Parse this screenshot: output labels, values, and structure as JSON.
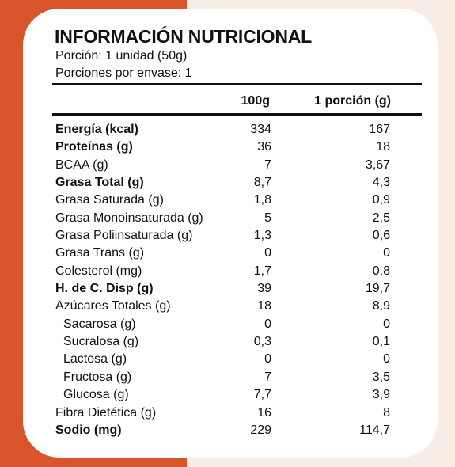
{
  "title": "INFORMACIÓN NUTRICIONAL",
  "serving_size": "Porción: 1 unidad (50g)",
  "servings_per_container": "Porciones por envase: 1",
  "columns": {
    "per_100": "100g",
    "per_serving": "1 porción (g)"
  },
  "colors": {
    "left_background": "#d8552c",
    "right_background": "#f8ede4",
    "card": "#ffffff",
    "text": "#111111"
  },
  "rows": [
    {
      "label": "Energía (kcal)",
      "per_100": "334",
      "per_serving": "167",
      "bold": true
    },
    {
      "label": "Proteínas (g)",
      "per_100": "36",
      "per_serving": "18",
      "bold": true
    },
    {
      "label": "BCAA (g)",
      "per_100": "7",
      "per_serving": "3,67"
    },
    {
      "label": "Grasa Total (g)",
      "per_100": "8,7",
      "per_serving": "4,3",
      "bold": true
    },
    {
      "label": "Grasa Saturada (g)",
      "per_100": "1,8",
      "per_serving": "0,9"
    },
    {
      "label": "Grasa Monoinsaturada (g)",
      "per_100": "5",
      "per_serving": "2,5"
    },
    {
      "label": "Grasa Poliinsaturada (g)",
      "per_100": "1,3",
      "per_serving": "0,6"
    },
    {
      "label": "Grasa Trans (g)",
      "per_100": "0",
      "per_serving": "0"
    },
    {
      "label": "Colesterol (mg)",
      "per_100": "1,7",
      "per_serving": "0,8"
    },
    {
      "label": "H. de C. Disp (g)",
      "per_100": "39",
      "per_serving": "19,7",
      "bold": true
    },
    {
      "label": "Azúcares Totales (g)",
      "per_100": "18",
      "per_serving": "8,9"
    },
    {
      "label": "Sacarosa (g)",
      "per_100": "0",
      "per_serving": "0",
      "indent": true
    },
    {
      "label": "Sucralosa (g)",
      "per_100": "0,3",
      "per_serving": "0,1",
      "indent": true
    },
    {
      "label": "Lactosa (g)",
      "per_100": "0",
      "per_serving": "0",
      "indent": true
    },
    {
      "label": "Fructosa (g)",
      "per_100": "7",
      "per_serving": "3,5",
      "indent": true
    },
    {
      "label": "Glucosa (g)",
      "per_100": "7,7",
      "per_serving": "3,9",
      "indent": true
    },
    {
      "label": "Fibra Dietética (g)",
      "per_100": "16",
      "per_serving": "8"
    },
    {
      "label": "Sodio (mg)",
      "per_100": "229",
      "per_serving": "114,7",
      "bold": true
    }
  ]
}
